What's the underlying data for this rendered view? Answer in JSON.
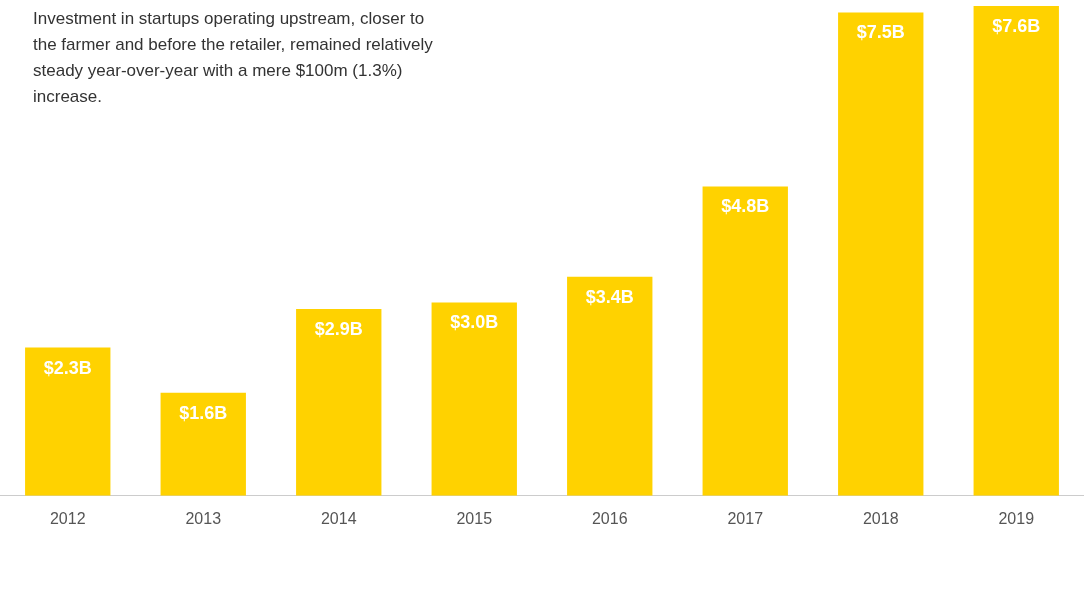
{
  "chart_data": {
    "type": "bar",
    "categories": [
      "2012",
      "2013",
      "2014",
      "2015",
      "2016",
      "2017",
      "2018",
      "2019"
    ],
    "values": [
      2.3,
      1.6,
      2.9,
      3.0,
      3.4,
      4.8,
      7.5,
      7.6
    ],
    "value_labels": [
      "$2.3B",
      "$1.6B",
      "$2.9B",
      "$3.0B",
      "$3.4B",
      "$4.8B",
      "$7.5B",
      "$7.6B"
    ],
    "color": "#ffd200",
    "grid": false,
    "legend": false,
    "annotations": [
      "Investment in startups operating upstream, closer to the farmer and before the retailer, remained relatively steady year-over-year with a mere $100m (1.3%) increase."
    ]
  }
}
